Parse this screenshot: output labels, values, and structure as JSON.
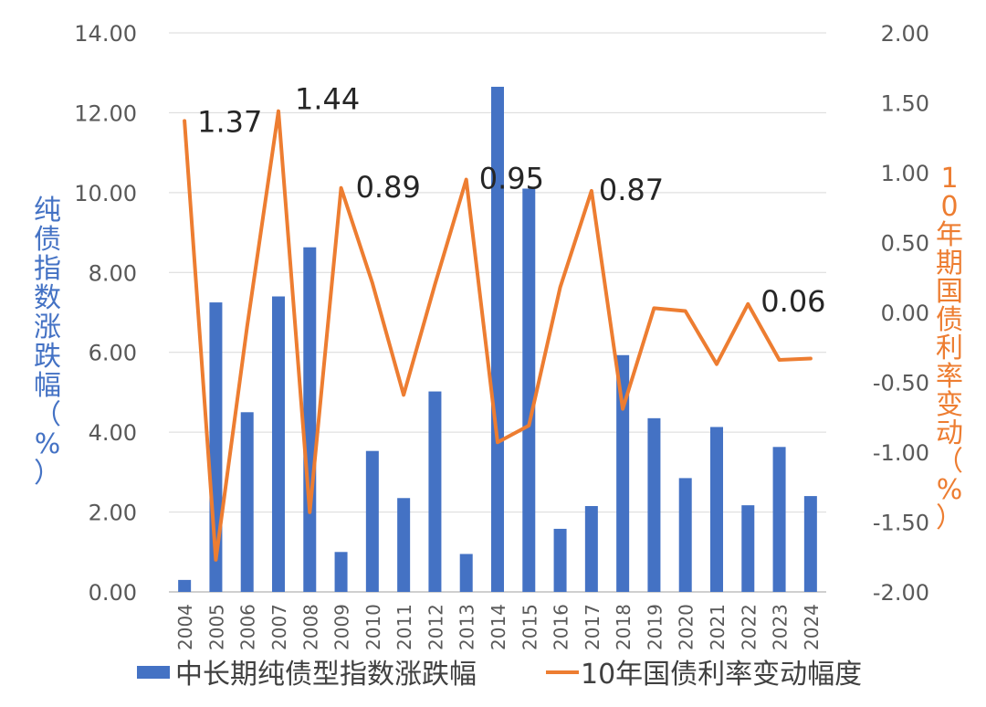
{
  "chart_data": {
    "type": "bar+line",
    "title": "",
    "categories": [
      "2004",
      "2005",
      "2006",
      "2007",
      "2008",
      "2009",
      "2010",
      "2011",
      "2012",
      "2013",
      "2014",
      "2015",
      "2016",
      "2017",
      "2018",
      "2019",
      "2020",
      "2021",
      "2022",
      "2023",
      "2024"
    ],
    "y_left": {
      "label": "纯债指数涨跌幅（%）",
      "range": [
        0,
        14
      ],
      "ticks": [
        "0.00",
        "2.00",
        "4.00",
        "6.00",
        "8.00",
        "10.00",
        "12.00",
        "14.00"
      ]
    },
    "y_right": {
      "label": "10年期国债利率变动（%）",
      "range": [
        -2,
        2
      ],
      "ticks": [
        "-2.00",
        "-1.50",
        "-1.00",
        "-0.50",
        "0.00",
        "0.50",
        "1.00",
        "1.50",
        "2.00"
      ]
    },
    "grid": true,
    "legend_position": "bottom",
    "series": [
      {
        "name": "中长期纯债型指数涨跌幅",
        "type": "bar",
        "axis": "left",
        "color": "#4472C4",
        "values": [
          0.3,
          7.25,
          4.5,
          7.4,
          8.63,
          1.0,
          3.53,
          2.35,
          5.02,
          0.95,
          12.65,
          10.1,
          1.58,
          2.15,
          5.93,
          4.35,
          2.85,
          4.13,
          2.17,
          3.63,
          2.4
        ]
      },
      {
        "name": "10年国债利率变动幅度",
        "type": "line",
        "axis": "right",
        "color": "#ED7D31",
        "values": [
          1.37,
          -1.77,
          -0.1,
          1.44,
          -1.43,
          0.89,
          0.21,
          -0.59,
          0.2,
          0.95,
          -0.93,
          -0.81,
          0.18,
          0.87,
          -0.69,
          0.03,
          0.01,
          -0.37,
          0.06,
          -0.34,
          -0.33
        ]
      }
    ],
    "annotations": [
      {
        "text": "1.37",
        "category": "2004"
      },
      {
        "text": "1.44",
        "category": "2007"
      },
      {
        "text": "0.89",
        "category": "2009"
      },
      {
        "text": "0.95",
        "category": "2013"
      },
      {
        "text": "0.87",
        "category": "2017"
      },
      {
        "text": "0.06",
        "category": "2022"
      }
    ]
  }
}
